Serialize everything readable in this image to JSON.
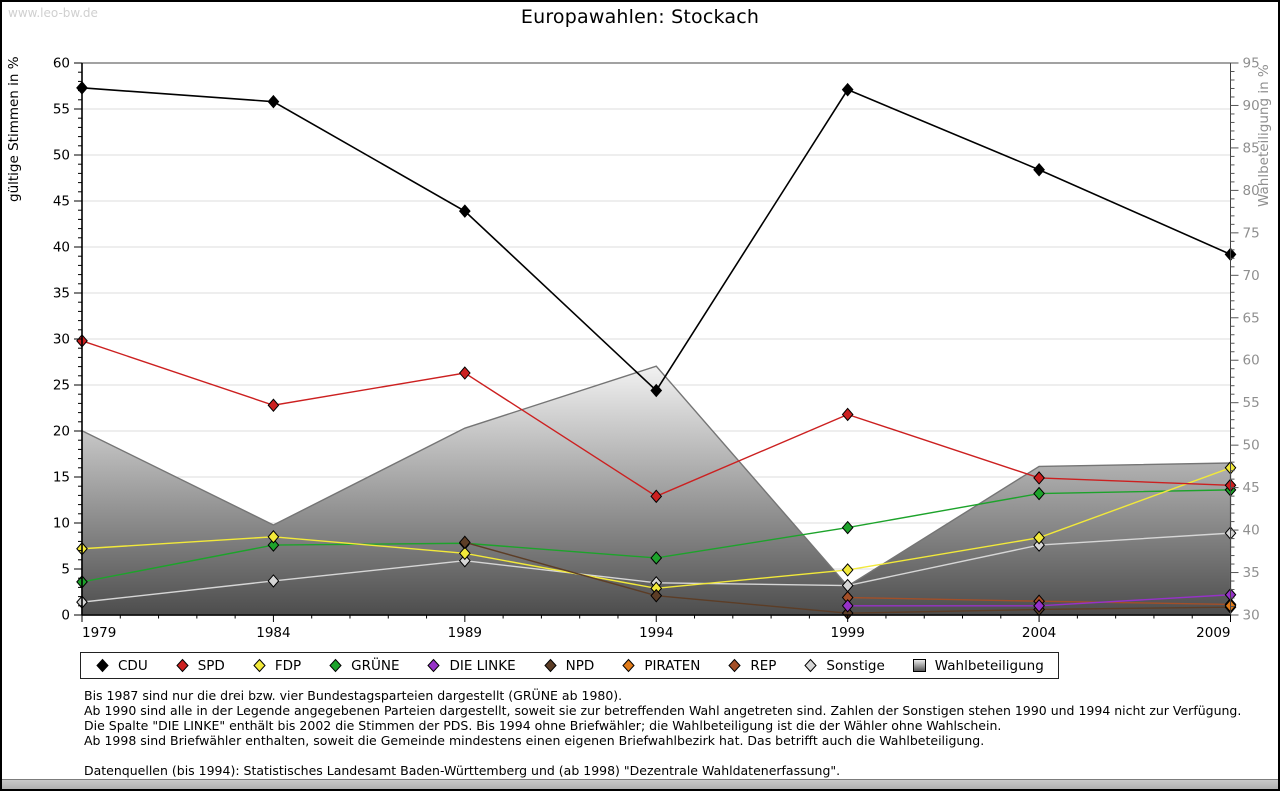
{
  "window": {
    "watermark": "www.leo-bw.de"
  },
  "chart_data": {
    "type": "line",
    "title": "Europawahlen: Stockach",
    "x": [
      1979,
      1984,
      1989,
      1994,
      1999,
      2004,
      2009
    ],
    "x_range": [
      1979,
      2009
    ],
    "x_tick_step": 5,
    "x_minor_step": 1,
    "grid": "horizontal-only",
    "y_left": {
      "label": "gültige Stimmen in %",
      "min": 0,
      "max": 60,
      "tick_step": 5,
      "minor_step": 1
    },
    "y_right": {
      "label": "Wahlbeteiligung in %",
      "min": 30,
      "max": 95,
      "tick_step": 5,
      "minor_step": 1
    },
    "series": [
      {
        "name": "CDU",
        "color": "#000000",
        "axis": "left",
        "marker": "diamond",
        "values": [
          57.3,
          55.8,
          43.9,
          24.4,
          57.1,
          48.4,
          39.2
        ]
      },
      {
        "name": "SPD",
        "color": "#cc2020",
        "axis": "left",
        "marker": "diamond",
        "values": [
          29.8,
          22.8,
          26.3,
          12.9,
          21.8,
          14.9,
          14.1
        ]
      },
      {
        "name": "FDP",
        "color": "#f2e93a",
        "axis": "left",
        "marker": "diamond",
        "values": [
          7.2,
          8.5,
          6.7,
          2.9,
          4.9,
          8.4,
          16.0
        ]
      },
      {
        "name": "GRÜNE",
        "color": "#1da32b",
        "axis": "left",
        "marker": "diamond",
        "values": [
          3.6,
          7.6,
          7.8,
          6.2,
          9.5,
          13.2,
          13.6
        ]
      },
      {
        "name": "DIE LINKE",
        "color": "#9632c8",
        "axis": "left",
        "marker": "diamond",
        "values": [
          null,
          null,
          null,
          null,
          1.0,
          1.0,
          2.2
        ]
      },
      {
        "name": "NPD",
        "color": "#5c3d26",
        "axis": "left",
        "marker": "diamond",
        "values": [
          null,
          null,
          7.9,
          2.1,
          0.2,
          0.6,
          0.85
        ]
      },
      {
        "name": "PIRATEN",
        "color": "#e07b1a",
        "axis": "left",
        "marker": "diamond",
        "values": [
          null,
          null,
          null,
          null,
          null,
          null,
          1.0
        ]
      },
      {
        "name": "REP",
        "color": "#a34f28",
        "axis": "left",
        "marker": "diamond",
        "values": [
          null,
          null,
          null,
          null,
          1.9,
          1.5,
          1.15
        ]
      },
      {
        "name": "Sonstige",
        "color": "#d6d6d6",
        "axis": "left",
        "marker": "diamond",
        "values": [
          1.4,
          3.7,
          5.9,
          3.5,
          3.2,
          7.6,
          8.9
        ]
      }
    ],
    "area_series": {
      "name": "Wahlbeteiligung",
      "axis": "right",
      "fill": "gradient-gray",
      "values": [
        51.7,
        40.6,
        52.0,
        59.3,
        33.4,
        47.5,
        47.9
      ]
    },
    "draw_order": [
      "Sonstige",
      "GRÜNE",
      "FDP",
      "SPD",
      "CDU",
      "NPD",
      "REP",
      "PIRATEN",
      "DIE LINKE"
    ],
    "legend_position": "bottom",
    "legend": [
      "CDU",
      "SPD",
      "FDP",
      "GRÜNE",
      "DIE LINKE",
      "NPD",
      "PIRATEN",
      "REP",
      "Sonstige",
      "Wahlbeteiligung"
    ]
  },
  "footnotes": [
    "Bis 1987 sind nur die drei bzw. vier Bundestagsparteien dargestellt (GRÜNE ab 1980).",
    "Ab 1990 sind alle in der Legende angegebenen Parteien dargestellt, soweit sie zur betreffenden Wahl angetreten sind. Zahlen der Sonstigen stehen 1990 und 1994 nicht zur Verfügung.",
    "Die Spalte \"DIE LINKE\" enthält bis 2002 die Stimmen der PDS. Bis 1994 ohne Briefwähler; die Wahlbeteiligung ist die der Wähler ohne Wahlschein.",
    "Ab 1998 sind Briefwähler enthalten, soweit die Gemeinde mindestens einen eigenen Briefwahlbezirk hat. Das betrifft auch die Wahlbeteiligung.",
    "",
    "Datenquellen (bis 1994): Statistisches Landesamt Baden-Württemberg und (ab 1998) \"Dezentrale Wahldatenerfassung\"."
  ]
}
